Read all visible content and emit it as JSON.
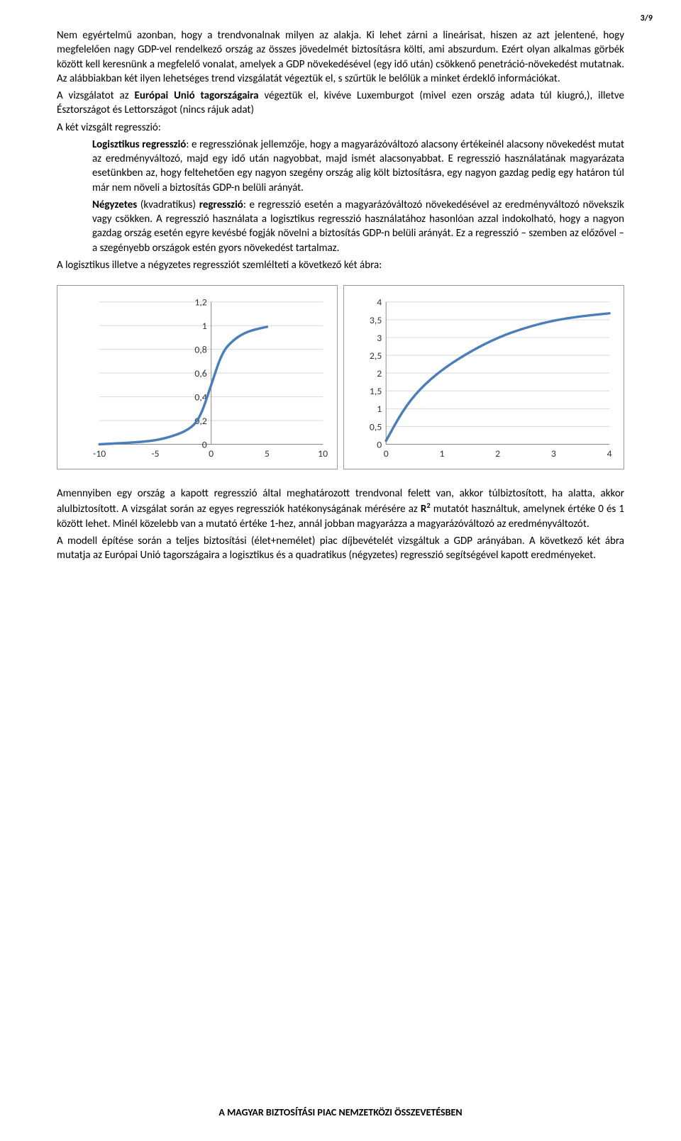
{
  "page_number": "3/9",
  "paragraphs": {
    "p1": "Nem egyértelmű azonban, hogy a trendvonalnak milyen az alakja. Ki lehet zárni a lineárisat, hiszen az azt jelentené, hogy megfelelően nagy GDP-vel rendelkező ország az összes jövedelmét biztosításra költi, ami abszurdum. Ezért olyan alkalmas görbék között kell keresnünk a megfelelő vonalat, amelyek a GDP növekedésével (egy idő után) csökkenő penetráció-növekedést mutatnak. Az alábbiakban két ilyen lehetséges trend vizsgálatát végeztük el, s szűrtük le belőlük a minket érdeklő információkat.",
    "p2": "A vizsgálatot az Európai Unió tagországaira végeztük el, kivéve Luxemburgot (mivel ezen ország adata túl kiugró,), illetve Észtországot és Lettországot (nincs rájuk adat)",
    "p2_bold": "Európai Unió tagországaira",
    "p3": "A két vizsgált regresszió:",
    "log_lead": "Logisztikus regresszió",
    "log_body": ": e regressziónak jellemzője, hogy a magyarázóváltozó alacsony értékeinél alacsony növekedést mutat az eredményváltozó, majd egy idő után nagyobbat, majd ismét alacsonyabbat. E regresszió használatának magyarázata esetünkben az, hogy feltehetően egy nagyon szegény ország alig költ biztosításra, egy nagyon gazdag pedig egy határon túl már nem növeli a biztosítás GDP-n belüli arányát.",
    "quad_lead": "Négyzetes",
    "quad_mid": " (kvadratikus) ",
    "quad_lead2": "regresszió",
    "quad_body": ": e regresszió esetén a magyarázóváltozó növekedésével az eredményváltozó növekszik vagy csökken. A regresszió használata a logisztikus regresszió használatához hasonlóan azzal indokolható, hogy a nagyon gazdag ország esetén egyre kevésbé fogják növelni a biztosítás GDP-n belüli arányát. Ez a regresszió – szemben az előzővel – a szegényebb országok estén gyors növekedést tartalmaz.",
    "p4": "A logisztikus illetve a négyzetes regressziót szemlélteti a következő két ábra:",
    "p5a": "Amennyiben egy ország a kapott regresszió által meghatározott trendvonal felett van, akkor túlbiztosított, ha alatta, akkor alulbiztosított. A vizsgálat során az egyes regressziók hatékonyságának mérésére az ",
    "p5_r": "R",
    "p5_sup": "2",
    "p5b": " mutatót használtuk, amelynek értéke 0 és 1 között lehet. Minél közelebb van a mutató értéke 1-hez, annál jobban magyarázza a magyarázóváltozó az eredményváltozót.",
    "p6": "A modell építése során a teljes biztosítási (élet+nemélet) piac díjbevételét vizsgáltuk a GDP arányában. A következő két ábra mutatja az Európai Unió tagországaira a logisztikus és a quadratikus (négyzetes) regresszió segítségével kapott eredményeket."
  },
  "chart_left": {
    "type": "line",
    "curve_color": "#4a7ebb",
    "grid_color": "#d9d9d9",
    "axis_color": "#888888",
    "tick_fontsize": 14,
    "xlim": [
      -10,
      10
    ],
    "ylim": [
      0,
      1.2
    ],
    "xticks": [
      -10,
      -5,
      0,
      5,
      10
    ],
    "yticks": [
      "0",
      "0,2",
      "0,4",
      "0,6",
      "0,8",
      "1",
      "1,2"
    ],
    "yvals": [
      0,
      0.2,
      0.4,
      0.6,
      0.8,
      1.0,
      1.2
    ],
    "points": [
      [
        -10,
        0.0
      ],
      [
        -6,
        0.02
      ],
      [
        -4,
        0.05
      ],
      [
        -2,
        0.12
      ],
      [
        -1,
        0.22
      ],
      [
        0,
        0.5
      ],
      [
        1,
        0.78
      ],
      [
        2,
        0.88
      ],
      [
        3,
        0.94
      ],
      [
        4,
        0.97
      ],
      [
        5,
        0.99
      ]
    ],
    "line_width": 3.5
  },
  "chart_right": {
    "type": "line",
    "curve_color": "#4a7ebb",
    "grid_color": "#d9d9d9",
    "axis_color": "#888888",
    "tick_fontsize": 14,
    "xlim": [
      0,
      4
    ],
    "ylim": [
      0,
      4
    ],
    "xticks": [
      0,
      1,
      2,
      3,
      4
    ],
    "yticks": [
      "0",
      "0,5",
      "1",
      "1,5",
      "2",
      "2,5",
      "3",
      "3,5",
      "4"
    ],
    "yvals": [
      0,
      0.5,
      1,
      1.5,
      2,
      2.5,
      3,
      3.5,
      4
    ],
    "points": [
      [
        0,
        0.1
      ],
      [
        0.3,
        0.95
      ],
      [
        0.6,
        1.55
      ],
      [
        1.0,
        2.1
      ],
      [
        1.5,
        2.6
      ],
      [
        2.0,
        3.0
      ],
      [
        2.5,
        3.28
      ],
      [
        3.0,
        3.48
      ],
      [
        3.5,
        3.6
      ],
      [
        4.0,
        3.68
      ]
    ],
    "line_width": 3.5
  },
  "footer": {
    "prefix": "A ",
    "caps": "MAGYAR BIZTOSÍTÁSI PIAC NEMZETKÖZI ÖSSZEVETÉSBEN"
  }
}
